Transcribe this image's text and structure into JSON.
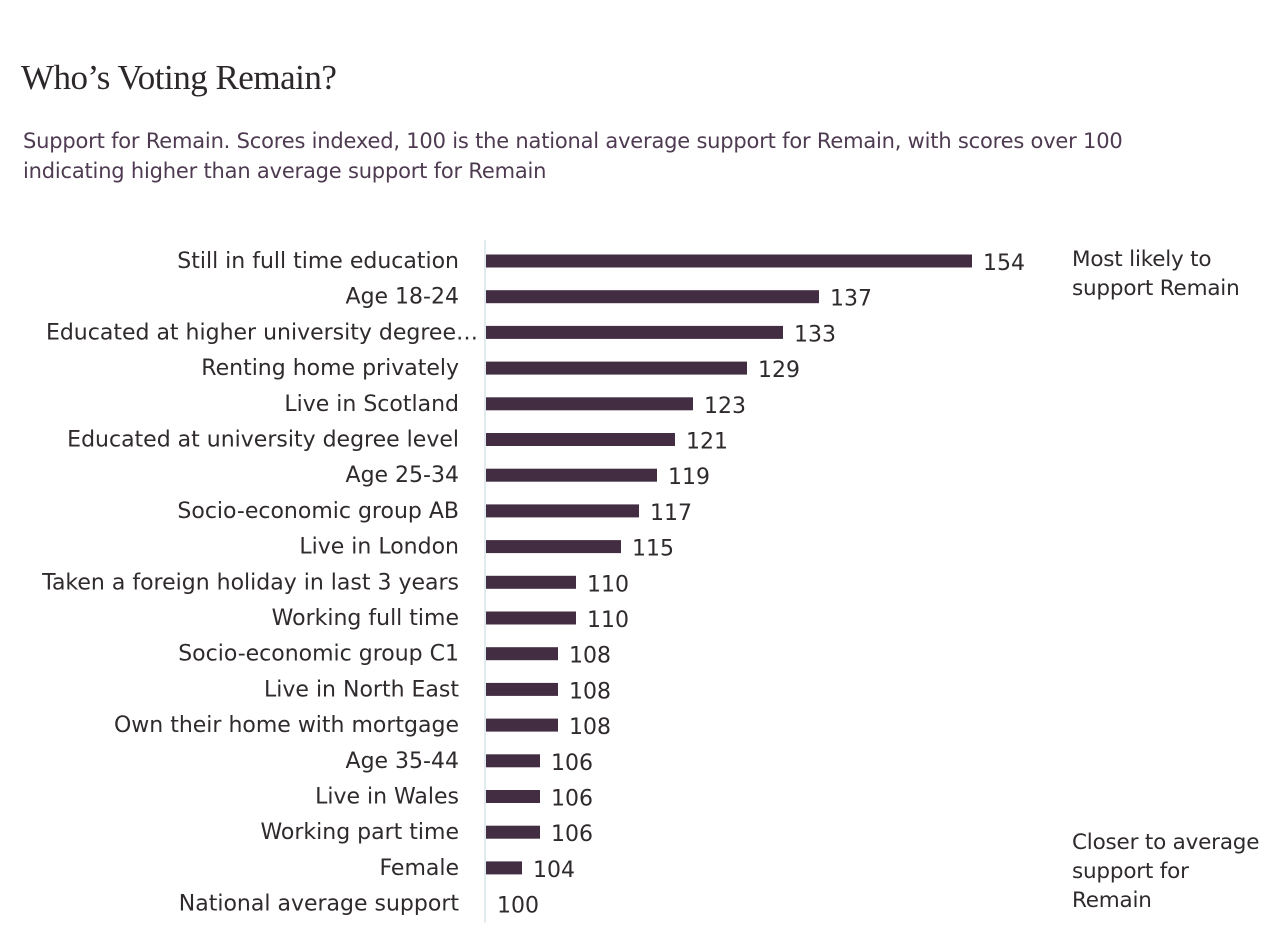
{
  "title": "Who’s Voting Remain?",
  "subtitle": "Support for Remain. Scores indexed, 100 is the national average support for Remain, with scores over 100 indicating higher than average support for Remain",
  "notes": {
    "top": "Most likely to support Remain",
    "bottom": "Closer to average support for Remain"
  },
  "colors": {
    "bar": "#432d42",
    "axis": "#d6e4ea",
    "text": "#2f2a2d",
    "subtitle": "#4e3a51"
  },
  "chart_data": {
    "type": "bar",
    "orientation": "horizontal",
    "baseline": 100,
    "xlim": [
      100,
      156
    ],
    "title": "Who’s Voting Remain?",
    "categories": [
      "Still in full time education",
      "Age 18-24",
      "Educated at higher university degree…",
      "Renting home privately",
      "Live in Scotland",
      "Educated at  university degree level",
      "Age  25-34",
      "Socio-economic group  AB",
      "Live in London",
      "Taken a foreign holiday in last 3 years",
      "Working full time",
      "Socio-economic group C1",
      "Live in North East",
      "Own their home with mortgage",
      "Age 35-44",
      "Live in Wales",
      "Working part time",
      "Female",
      "National average support"
    ],
    "values": [
      154,
      137,
      133,
      129,
      123,
      121,
      119,
      117,
      115,
      110,
      110,
      108,
      108,
      108,
      106,
      106,
      106,
      104,
      100
    ]
  }
}
